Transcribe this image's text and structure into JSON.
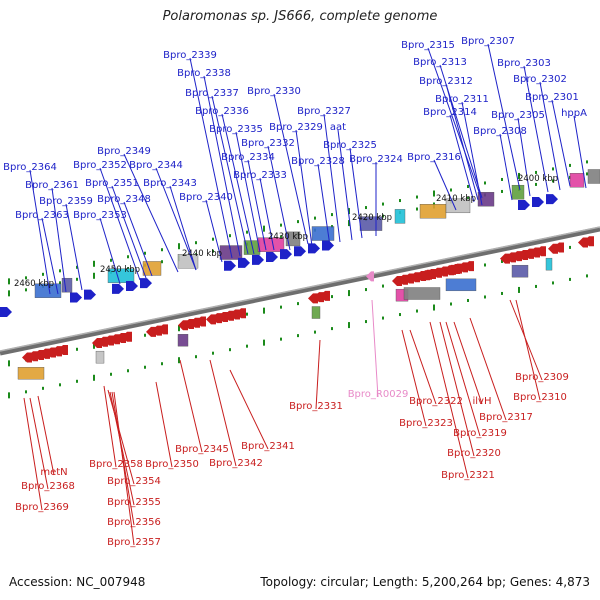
{
  "title": "Polaromonas sp. JS666, complete genome",
  "accession_label": "Accession: NC_007948",
  "summary": "Topology: circular; Length: 5,200,264 bp; Genes: 4,873",
  "colors": {
    "forward_genes": "#1e22c8",
    "reverse_genes": "#c81e1e",
    "ncrna": "#e88ac8",
    "ticks": "#1a8a1a",
    "backbone": "#808080"
  },
  "scale_labels": [
    "2400 kbp",
    "2410 kbp",
    "2420 kbp",
    "2430 kbp",
    "2440 kbp",
    "2450 kbp",
    "2460 kbp"
  ],
  "forward_labels": [
    "Bpro_2315",
    "Bpro_2307",
    "Bpro_2313",
    "Bpro_2303",
    "Bpro_2312",
    "Bpro_2302",
    "Bpro_2311",
    "Bpro_2301",
    "Bpro_2314",
    "Bpro_2305",
    "hppA",
    "Bpro_2308",
    "Bpro_2316",
    "Bpro_2339",
    "Bpro_2338",
    "Bpro_2337",
    "Bpro_2330",
    "Bpro_2336",
    "Bpro_2327",
    "Bpro_2335",
    "Bpro_2329",
    "aat",
    "Bpro_2332",
    "Bpro_2325",
    "Bpro_2349",
    "Bpro_2334",
    "Bpro_2328",
    "Bpro_2324",
    "Bpro_2352",
    "Bpro_2344",
    "Bpro_2333",
    "Bpro_2364",
    "Bpro_2361",
    "Bpro_2351",
    "Bpro_2343",
    "Bpro_2348",
    "Bpro_2340",
    "Bpro_2359",
    "Bpro_2363",
    "Bpro_2353"
  ],
  "reverse_labels": [
    "Bpro_2309",
    "Bpro_2310",
    "Bpro_2322",
    "ilvH",
    "Bpro_2317",
    "Bpro_2323",
    "Bpro_2319",
    "Bpro_2320",
    "Bpro_2321",
    "Bpro_2331",
    "Bpro_2341",
    "Bpro_2345",
    "Bpro_2342",
    "Bpro_2358",
    "Bpro_2350",
    "metN",
    "Bpro_2354",
    "Bpro_2368",
    "Bpro_2355",
    "Bpro_2369",
    "Bpro_2356",
    "Bpro_2357"
  ],
  "ncrna_labels": [
    "Bpro_R0029"
  ]
}
